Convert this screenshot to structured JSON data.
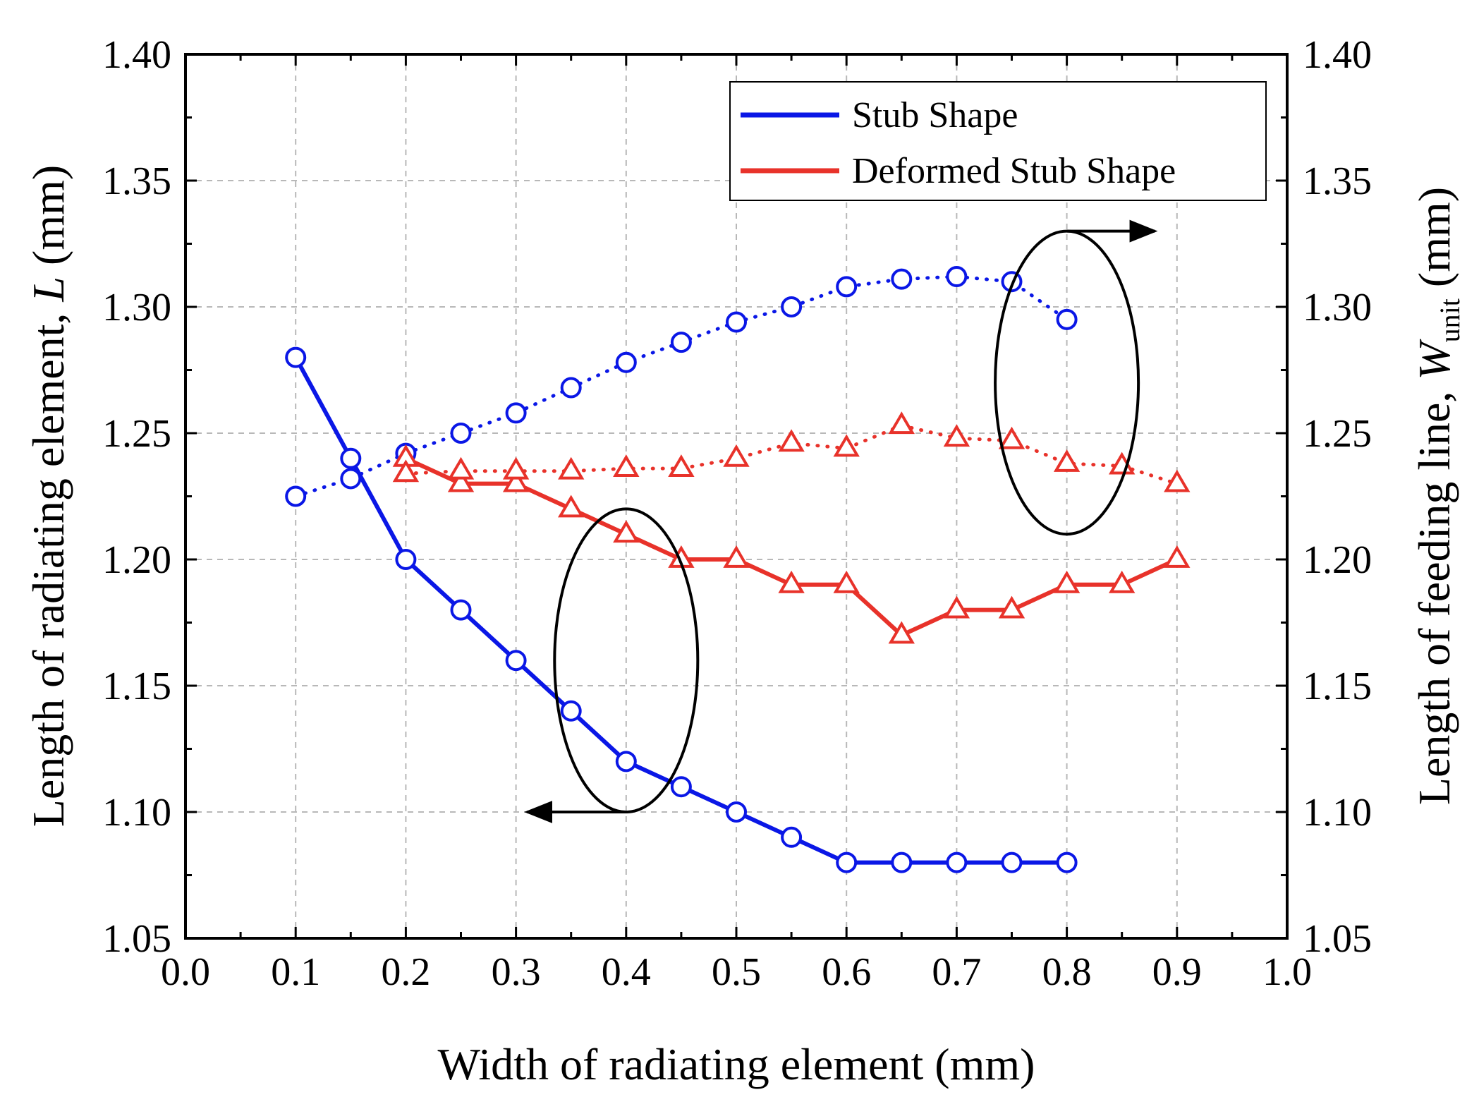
{
  "chart_data": {
    "type": "line",
    "xlabel": "Width of radiating element (mm)",
    "ylabel_left": {
      "prefix": "Length of radiating element, ",
      "italic": "L",
      "suffix": " (mm)"
    },
    "ylabel_right": {
      "prefix": "Length of feeding line, ",
      "italic": "W",
      "subscript": "unit",
      "suffix": " (mm)"
    },
    "xlim": [
      0.0,
      1.0
    ],
    "ylim": [
      1.05,
      1.4
    ],
    "x_ticks": [
      "0.0",
      "0.1",
      "0.2",
      "0.3",
      "0.4",
      "0.5",
      "0.6",
      "0.7",
      "0.8",
      "0.9",
      "1.0"
    ],
    "y_ticks": [
      "1.05",
      "1.10",
      "1.15",
      "1.20",
      "1.25",
      "1.30",
      "1.35",
      "1.40"
    ],
    "grid": true,
    "legend_position": "top-right",
    "legend": [
      {
        "label": "Stub Shape",
        "color": "#0a17e6"
      },
      {
        "label": "Deformed Stub Shape",
        "color": "#e8322a"
      }
    ],
    "series": [
      {
        "legend_index": 0,
        "axis": "left",
        "color": "#0a17e6",
        "line_style": "solid",
        "marker": "circle",
        "x": [
          0.1,
          0.15,
          0.2,
          0.25,
          0.3,
          0.35,
          0.4,
          0.45,
          0.5,
          0.55,
          0.6,
          0.65,
          0.7,
          0.75,
          0.8
        ],
        "y": [
          1.28,
          1.24,
          1.2,
          1.18,
          1.16,
          1.14,
          1.12,
          1.11,
          1.1,
          1.09,
          1.08,
          1.08,
          1.08,
          1.08,
          1.08
        ]
      },
      {
        "legend_index": 0,
        "axis": "right",
        "color": "#0a17e6",
        "line_style": "dotted",
        "marker": "circle",
        "x": [
          0.1,
          0.15,
          0.2,
          0.25,
          0.3,
          0.35,
          0.4,
          0.45,
          0.5,
          0.55,
          0.6,
          0.65,
          0.7,
          0.75,
          0.8
        ],
        "y": [
          1.225,
          1.232,
          1.242,
          1.25,
          1.258,
          1.268,
          1.278,
          1.286,
          1.294,
          1.3,
          1.308,
          1.311,
          1.312,
          1.31,
          1.295
        ]
      },
      {
        "legend_index": 1,
        "axis": "left",
        "color": "#e8322a",
        "line_style": "solid",
        "marker": "triangle",
        "x": [
          0.2,
          0.25,
          0.3,
          0.35,
          0.4,
          0.45,
          0.5,
          0.55,
          0.6,
          0.65,
          0.7,
          0.75,
          0.8,
          0.85,
          0.9
        ],
        "y": [
          1.24,
          1.23,
          1.23,
          1.22,
          1.21,
          1.2,
          1.2,
          1.19,
          1.19,
          1.17,
          1.18,
          1.18,
          1.19,
          1.19,
          1.2
        ]
      },
      {
        "legend_index": 1,
        "axis": "right",
        "color": "#e8322a",
        "line_style": "dotted",
        "marker": "triangle",
        "x": [
          0.2,
          0.25,
          0.3,
          0.35,
          0.4,
          0.45,
          0.5,
          0.55,
          0.6,
          0.65,
          0.7,
          0.75,
          0.8,
          0.85,
          0.9
        ],
        "y": [
          1.234,
          1.235,
          1.235,
          1.235,
          1.236,
          1.236,
          1.24,
          1.246,
          1.244,
          1.253,
          1.248,
          1.247,
          1.238,
          1.237,
          1.23
        ]
      }
    ],
    "annotations": [
      {
        "shape": "ellipse",
        "center": [
          0.4,
          1.16
        ],
        "axis": "left",
        "arrow_to": "left"
      },
      {
        "shape": "ellipse",
        "center": [
          0.8,
          1.27
        ],
        "axis": "right",
        "arrow_to": "right"
      }
    ]
  }
}
